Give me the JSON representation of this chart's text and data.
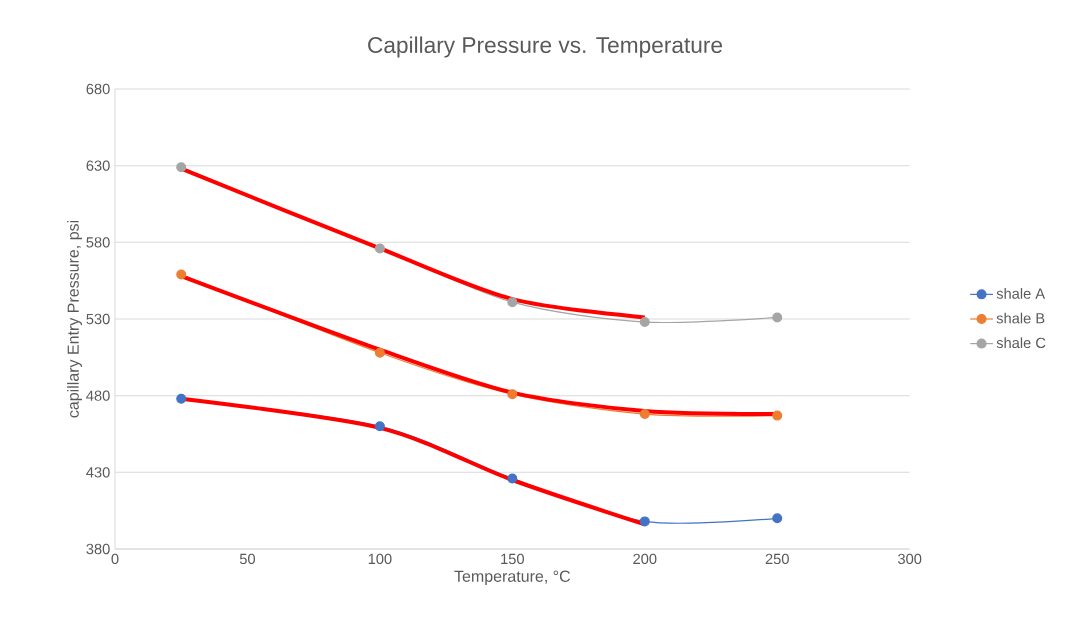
{
  "chart_data": {
    "type": "line",
    "title": "Capillary Pressure vs. Temperature",
    "xlabel": "Temperature, °C",
    "ylabel": "capillary Entry Pressure, psi",
    "xlim": [
      0,
      300
    ],
    "xticks": [
      0,
      50,
      100,
      150,
      200,
      250,
      300
    ],
    "ylim": [
      380,
      680
    ],
    "yticks": [
      380,
      430,
      480,
      530,
      580,
      630,
      680
    ],
    "grid": "y",
    "legend": "right",
    "marker": "circle",
    "series": [
      {
        "name": "shale A",
        "color": "#4472c4",
        "x": [
          25,
          100,
          150,
          200,
          250
        ],
        "values": [
          478,
          460,
          426,
          398,
          400
        ]
      },
      {
        "name": "shale B",
        "color": "#ed7d31",
        "x": [
          25,
          100,
          150,
          200,
          250
        ],
        "values": [
          559,
          508,
          481,
          468,
          467
        ]
      },
      {
        "name": "shale C",
        "color": "#a5a5a5",
        "x": [
          25,
          100,
          150,
          200,
          250
        ],
        "values": [
          629,
          576,
          541,
          528,
          531
        ]
      },
      {
        "color": "#ff0000",
        "marker": "none",
        "x": [
          25,
          100,
          150,
          200
        ],
        "values": [
          478,
          459,
          425,
          396
        ]
      },
      {
        "color": "#ff0000",
        "marker": "none",
        "x": [
          25,
          100,
          150,
          200,
          250
        ],
        "values": [
          558,
          510,
          482,
          470,
          468
        ]
      },
      {
        "color": "#ff0000",
        "marker": "none",
        "x": [
          25,
          100,
          150,
          200
        ],
        "values": [
          628,
          576,
          543,
          531
        ]
      }
    ]
  }
}
